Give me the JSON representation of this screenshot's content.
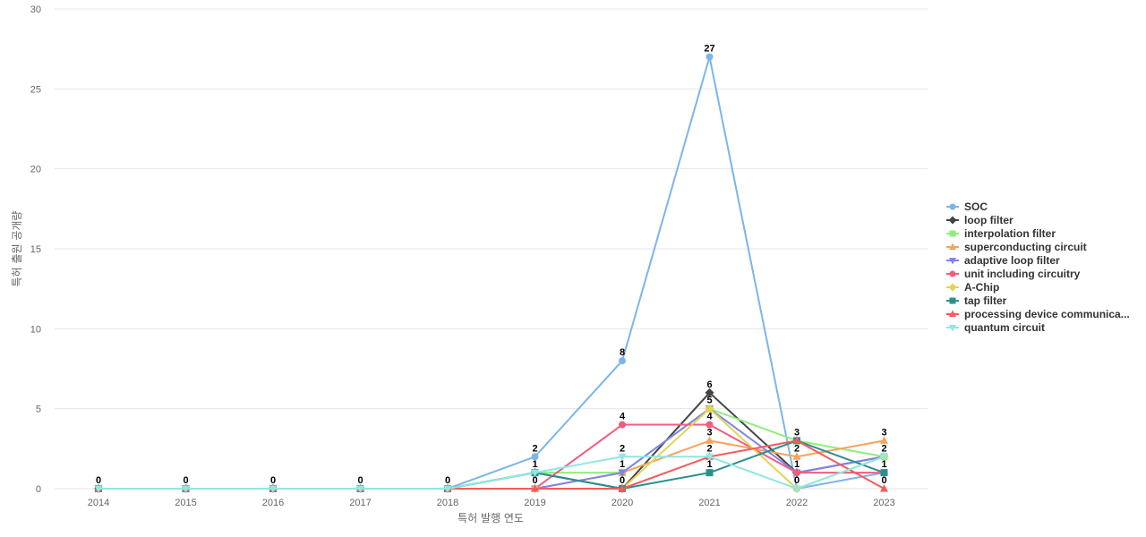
{
  "chart_data": {
    "type": "line",
    "title": "",
    "xlabel": "특허 발행 연도",
    "ylabel": "특허 출원 공개량",
    "ylim": [
      0,
      30
    ],
    "yticks": [
      0,
      5,
      10,
      15,
      20,
      25,
      30
    ],
    "grid": true,
    "legend_position": "right",
    "categories": [
      "2014",
      "2015",
      "2016",
      "2017",
      "2018",
      "2019",
      "2020",
      "2021",
      "2022",
      "2023"
    ],
    "series": [
      {
        "name": "SOC",
        "color": "#7cb5ec",
        "marker": "circle",
        "values": [
          0,
          0,
          0,
          0,
          0,
          2,
          8,
          27,
          0,
          1
        ]
      },
      {
        "name": "loop filter",
        "color": "#434348",
        "marker": "diamond",
        "values": [
          0,
          0,
          0,
          0,
          0,
          1,
          0,
          6,
          1,
          2
        ]
      },
      {
        "name": "interpolation filter",
        "color": "#90ed7d",
        "marker": "square",
        "values": [
          0,
          0,
          0,
          0,
          0,
          1,
          1,
          5,
          3,
          2
        ]
      },
      {
        "name": "superconducting circuit",
        "color": "#f7a35c",
        "marker": "triangle",
        "values": [
          0,
          0,
          0,
          0,
          0,
          0,
          1,
          3,
          2,
          3
        ]
      },
      {
        "name": "adaptive loop filter",
        "color": "#8085e9",
        "marker": "triangle-down",
        "values": [
          0,
          0,
          0,
          0,
          0,
          0,
          1,
          5,
          1,
          2
        ]
      },
      {
        "name": "unit including circuitry",
        "color": "#f15c80",
        "marker": "circle",
        "values": [
          0,
          0,
          0,
          0,
          0,
          0,
          4,
          4,
          1,
          1
        ]
      },
      {
        "name": "A-Chip",
        "color": "#e4d354",
        "marker": "diamond",
        "values": [
          0,
          0,
          0,
          0,
          0,
          0,
          0,
          5,
          0,
          2
        ]
      },
      {
        "name": "tap filter",
        "color": "#2b908f",
        "marker": "square",
        "values": [
          0,
          0,
          0,
          0,
          0,
          1,
          0,
          1,
          3,
          1
        ]
      },
      {
        "name": "processing device communica...",
        "color": "#f45b5b",
        "marker": "triangle",
        "values": [
          0,
          0,
          0,
          0,
          0,
          0,
          0,
          2,
          3,
          0
        ]
      },
      {
        "name": "quantum circuit",
        "color": "#91e8e1",
        "marker": "triangle-down",
        "values": [
          0,
          0,
          0,
          0,
          0,
          1,
          2,
          2,
          0,
          2
        ]
      }
    ],
    "data_labels": [
      {
        "series": 0,
        "index": 0
      },
      {
        "series": 0,
        "index": 1
      },
      {
        "series": 0,
        "index": 2
      },
      {
        "series": 0,
        "index": 3
      },
      {
        "series": 0,
        "index": 4
      },
      {
        "series": 0,
        "index": 5
      },
      {
        "series": 0,
        "index": 6
      },
      {
        "series": 0,
        "index": 7
      },
      {
        "series": 2,
        "index": 5
      },
      {
        "series": 3,
        "index": 5
      },
      {
        "series": 5,
        "index": 6
      },
      {
        "series": 9,
        "index": 6
      },
      {
        "series": 3,
        "index": 6
      },
      {
        "series": 1,
        "index": 6
      },
      {
        "series": 1,
        "index": 7
      },
      {
        "series": 2,
        "index": 7
      },
      {
        "series": 5,
        "index": 7
      },
      {
        "series": 3,
        "index": 7
      },
      {
        "series": 8,
        "index": 7
      },
      {
        "series": 7,
        "index": 7
      },
      {
        "series": 7,
        "index": 8
      },
      {
        "series": 3,
        "index": 8
      },
      {
        "series": 1,
        "index": 8
      },
      {
        "series": 0,
        "index": 8
      },
      {
        "series": 3,
        "index": 9
      },
      {
        "series": 2,
        "index": 9
      },
      {
        "series": 0,
        "index": 9
      },
      {
        "series": 8,
        "index": 9
      }
    ]
  }
}
